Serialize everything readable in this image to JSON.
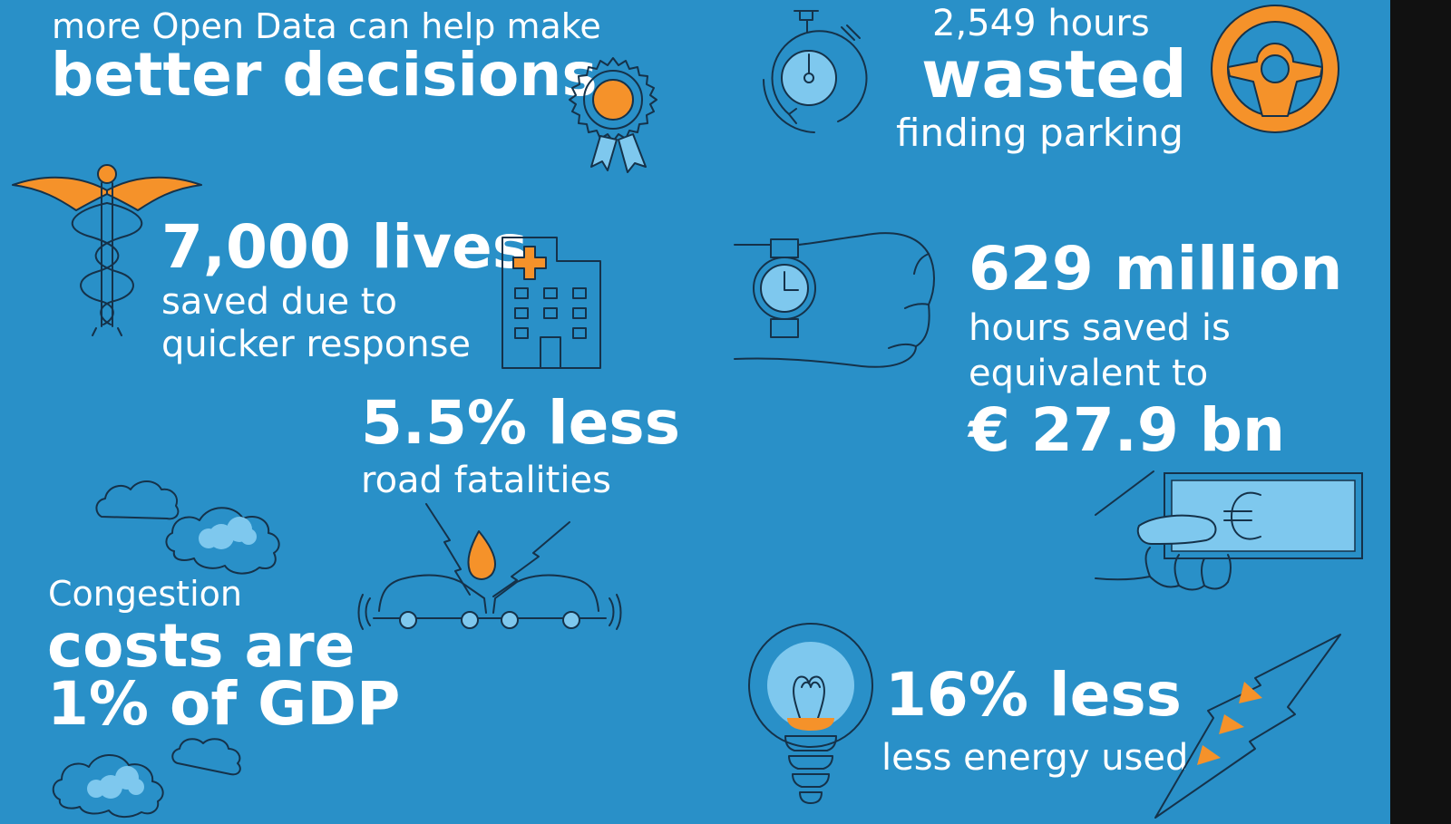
{
  "colors": {
    "background": "#2990c8",
    "accent": "#f5922a",
    "light_blue": "#7ec8ee",
    "line": "#15324a",
    "text": "#ffffff"
  },
  "headline": {
    "intro": "more Open Data can help make",
    "main": "better decisions"
  },
  "parking": {
    "value": "2,549 hours",
    "emphasis": "wasted",
    "caption": "finding parking"
  },
  "lives": {
    "value": "7,000 lives",
    "line1": "saved due to",
    "line2": "quicker response"
  },
  "hours": {
    "value": "629 million",
    "line1": "hours saved is",
    "line2": "equivalent to",
    "money": "€ 27.9 bn"
  },
  "fatalities": {
    "value": "5.5% less",
    "caption": "road fatalities"
  },
  "congestion": {
    "intro": "Congestion",
    "line1": "costs are",
    "line2": "1% of GDP"
  },
  "energy": {
    "value": "16% less",
    "caption": "less energy used"
  },
  "icons": [
    "award-ribbon-icon",
    "stopwatch-icon",
    "steering-wheel-icon",
    "caduceus-icon",
    "hospital-icon",
    "wristwatch-icon",
    "cash-hand-icon",
    "car-crash-icon",
    "cloud-icon",
    "light-bulb-icon",
    "lightning-bolt-icon"
  ]
}
